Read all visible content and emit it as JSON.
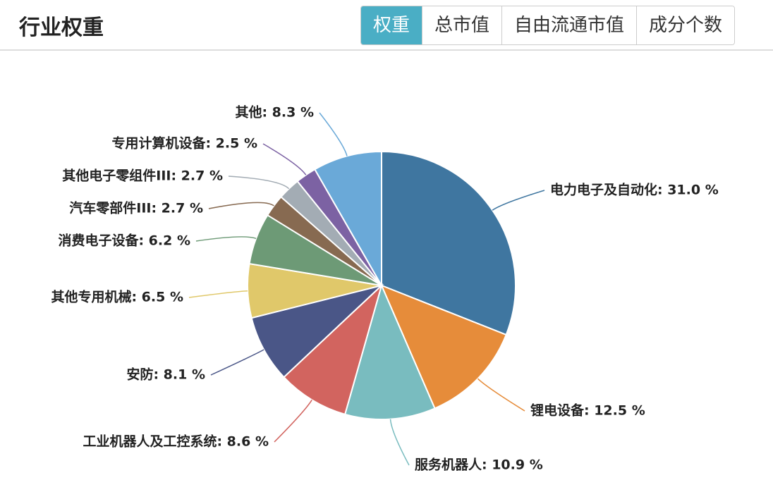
{
  "header": {
    "title": "行业权重",
    "tabs": [
      "权重",
      "总市值",
      "自由流通市值",
      "成分个数"
    ],
    "active_tab": 0
  },
  "chart_data": {
    "type": "pie",
    "values": [
      31.0,
      12.5,
      10.9,
      8.6,
      8.1,
      6.5,
      6.2,
      2.7,
      2.7,
      2.5,
      8.3
    ],
    "value_labels": [
      "电力电子及自动化: 31.0 %",
      "锂电设备: 12.5 %",
      "服务机器人: 10.9 %",
      "工业机器人及工控系统: 8.6 %",
      "安防: 8.1 %",
      "其他专用机械: 6.5 %",
      "消费电子设备: 6.2 %",
      "汽车零部件III: 2.7 %",
      "其他电子零组件III: 2.7 %",
      "专用计算机设备: 2.5 %",
      "其他: 8.3 %"
    ],
    "colors": [
      "#3f76a0",
      "#e68c3a",
      "#79bcbf",
      "#d2645f",
      "#4a5687",
      "#e0c86a",
      "#6d9a76",
      "#876a51",
      "#a3acb4",
      "#7c62a3",
      "#6aa9d8"
    ]
  }
}
